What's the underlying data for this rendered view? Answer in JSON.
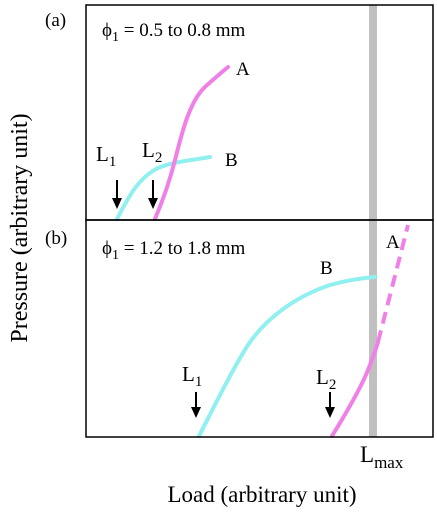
{
  "panel_a": {
    "tag": "(a)",
    "phi_symbol": "ϕ",
    "phi_sub": "1",
    "range": " = 0.5 to 0.8 mm",
    "curve_a_label": "A",
    "curve_b_label": "B",
    "l1_main": "L",
    "l1_sub": "1",
    "l2_main": "L",
    "l2_sub": "2"
  },
  "panel_b": {
    "tag": "(b)",
    "phi_symbol": "ϕ",
    "phi_sub": "1",
    "range": " = 1.2 to 1.8 mm",
    "curve_a_label": "A",
    "curve_b_label": "B",
    "l1_main": "L",
    "l1_sub": "1",
    "l2_main": "L",
    "l2_sub": "2"
  },
  "lmax_main": "L",
  "lmax_sub": "max",
  "y_axis_label": "Pressure (arbitrary unit)",
  "x_axis_label": "Load (arbitrary unit)",
  "colors": {
    "curve_a": "#f080e8",
    "curve_b": "#90f0f0",
    "lmax_bar": "#c0c0c0",
    "frame": "#000000"
  }
}
